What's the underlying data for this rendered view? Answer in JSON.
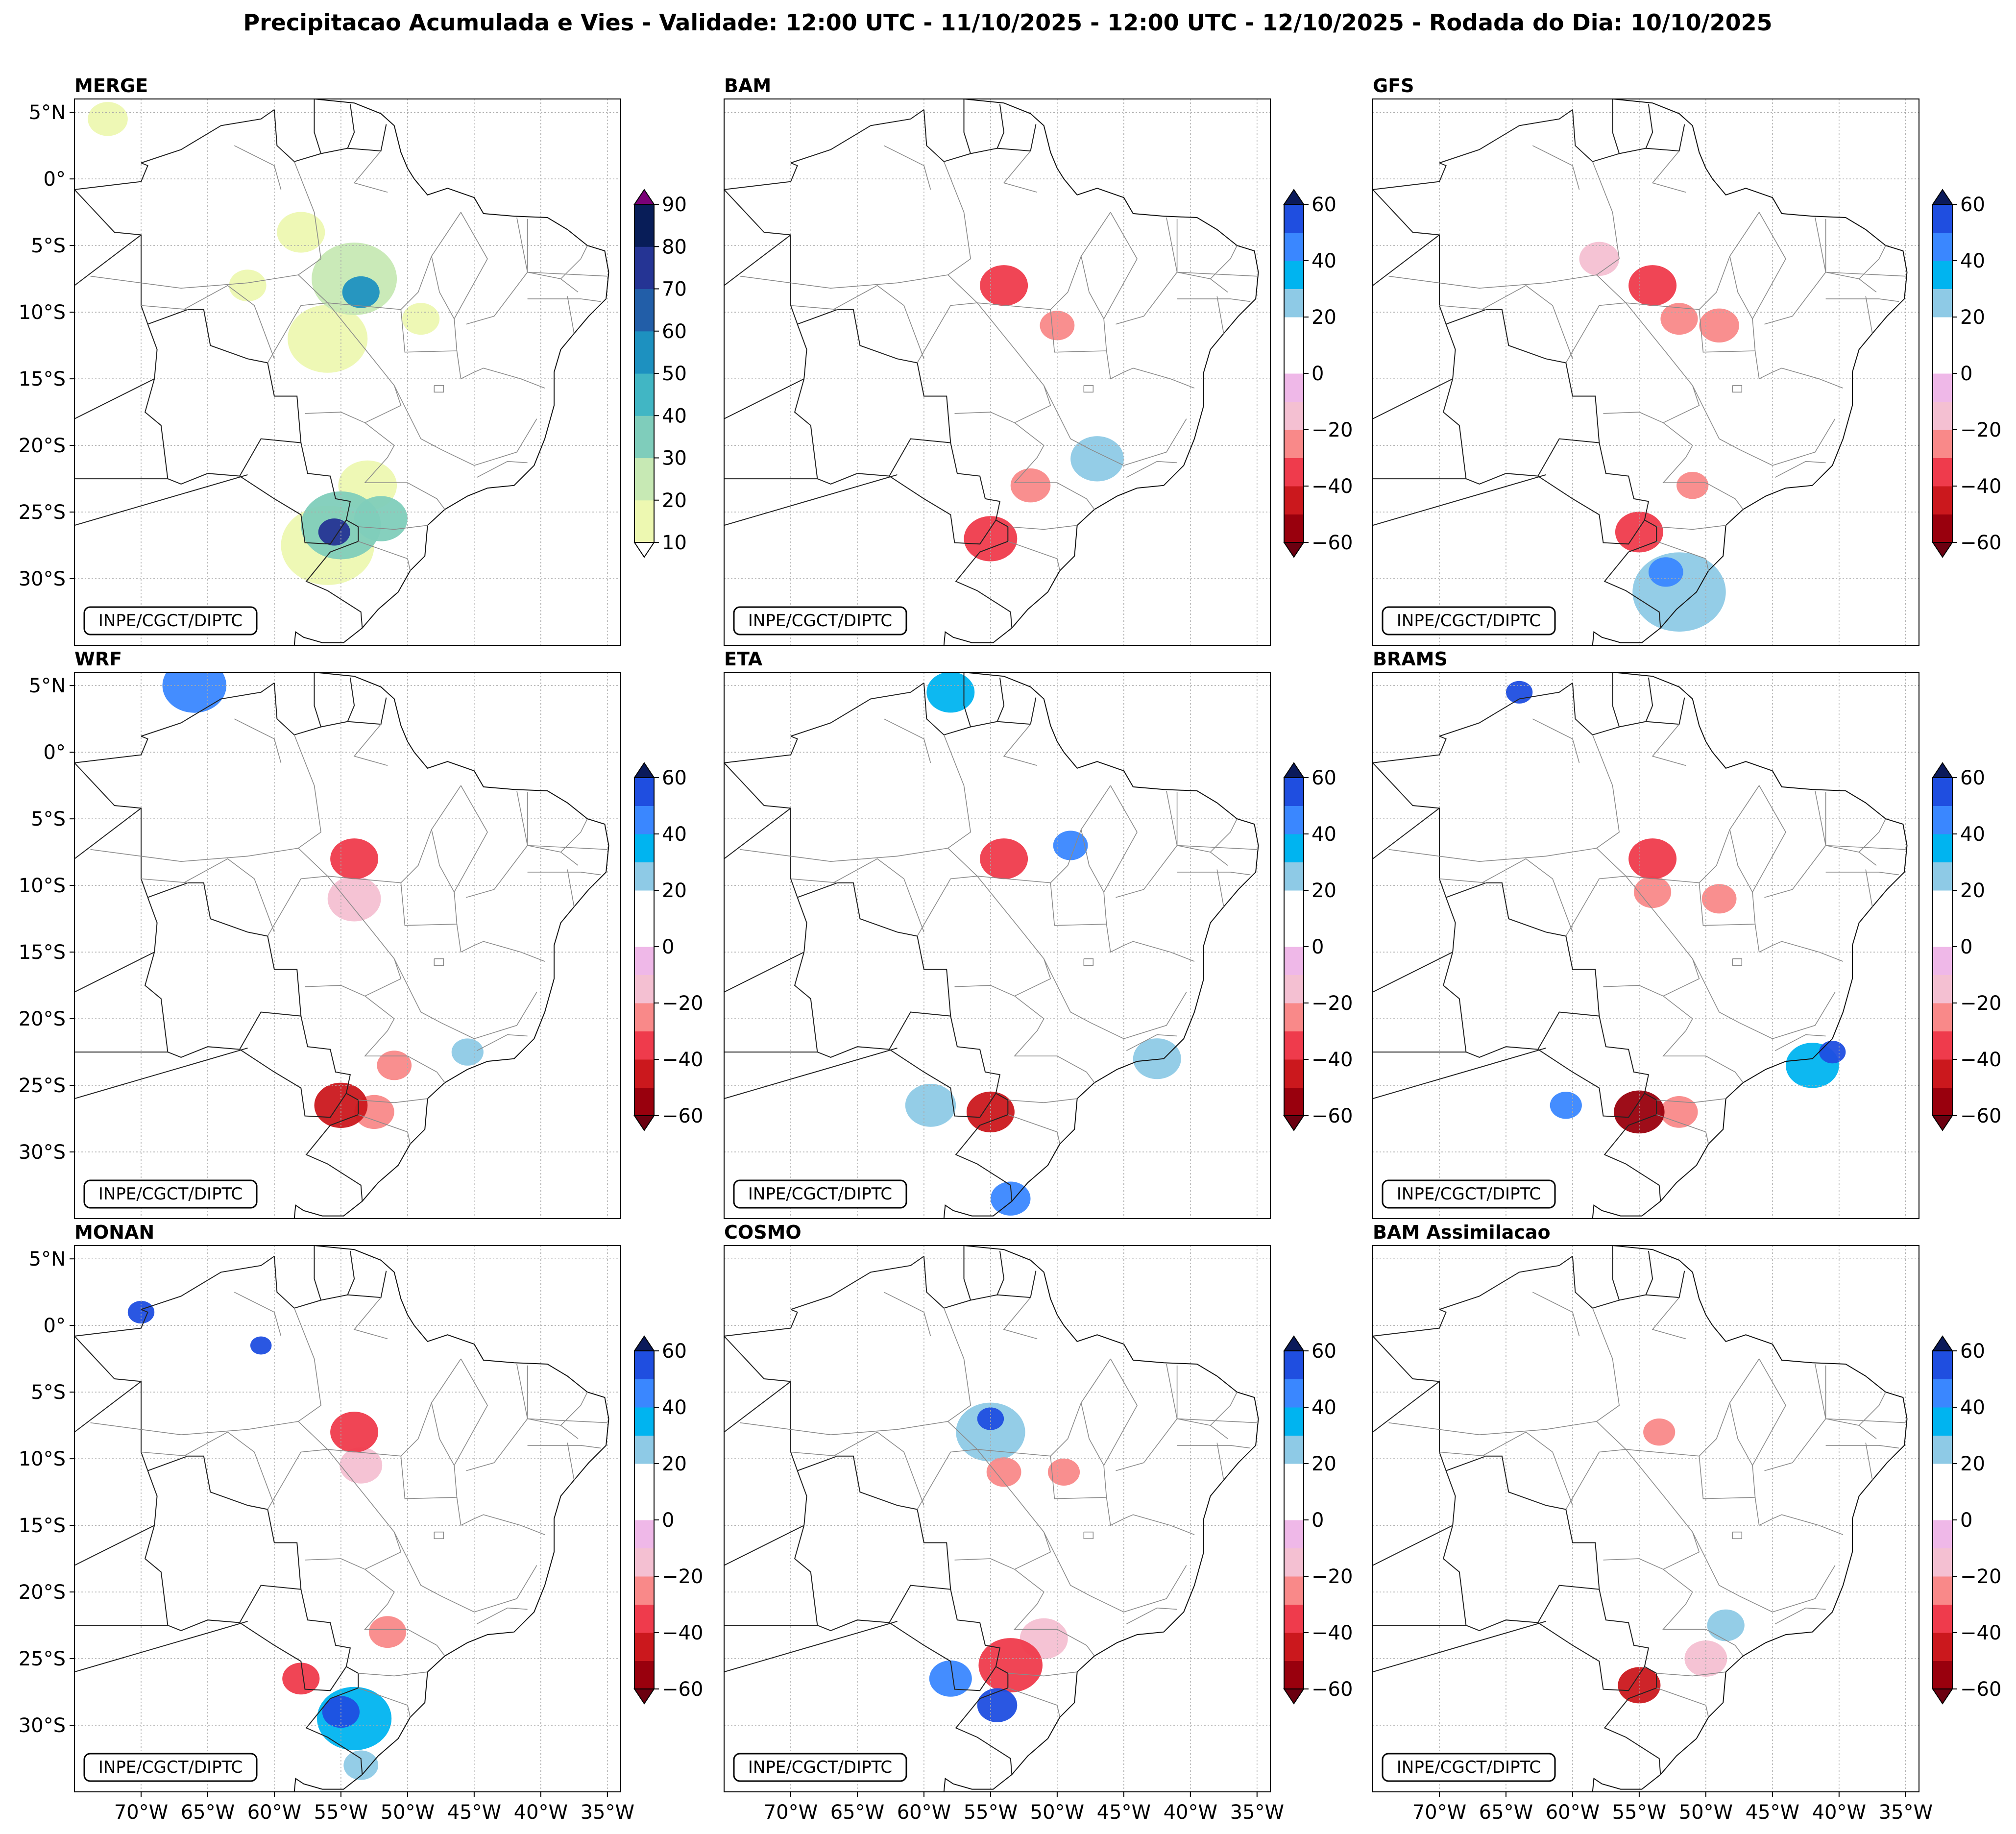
{
  "figure_title": "Precipitacao Acumulada e Vies - Validade: 12:00 UTC - 11/10/2025 - 12:00 UTC - 12/10/2025 - Rodada do Dia: 10/10/2025",
  "credit": "INPE/CGCT/DIPTC",
  "chart_data": {
    "type": "heatmap",
    "title": "Precipitacao Acumulada e Vies - Validade: 12:00 UTC - 11/10/2025 - 12:00 UTC - 12/10/2025 - Rodada do Dia: 10/10/2025",
    "map_extent": {
      "lon": [
        -75,
        -34
      ],
      "lat": [
        -35,
        6
      ]
    },
    "grid": true,
    "lat_tick_labels": [
      "5°N",
      "0°",
      "5°S",
      "10°S",
      "15°S",
      "20°S",
      "25°S",
      "30°S"
    ],
    "lat_ticks": [
      5,
      0,
      -5,
      -10,
      -15,
      -20,
      -25,
      -30
    ],
    "lon_tick_labels": [
      "70°W",
      "65°W",
      "60°W",
      "55°W",
      "50°W",
      "45°W",
      "40°W",
      "35°W"
    ],
    "lon_ticks": [
      -70,
      -65,
      -60,
      -55,
      -50,
      -45,
      -40,
      -35
    ],
    "precip_colorbar": {
      "levels": [
        10,
        20,
        30,
        40,
        50,
        60,
        70,
        80,
        90
      ],
      "tick_labels": [
        "10",
        "20",
        "30",
        "40",
        "50",
        "60",
        "70",
        "80",
        "90"
      ],
      "colors": [
        "#edf8b1",
        "#c7e9b4",
        "#7fcdbb",
        "#41b6c4",
        "#1d91c0",
        "#225ea8",
        "#253494",
        "#081d58"
      ],
      "extend_low": "#ffffff",
      "extend_high": "#7a0177"
    },
    "bias_colorbar": {
      "levels": [
        -60,
        -50,
        -40,
        -30,
        -20,
        -10,
        0,
        10,
        20,
        30,
        40,
        50,
        60
      ],
      "tick_labels": [
        "-60",
        "-40",
        "-20",
        "0",
        "20",
        "40",
        "60"
      ],
      "tick_values": [
        -60,
        -40,
        -20,
        0,
        20,
        40,
        60
      ],
      "colors": [
        "#99000d",
        "#cb181d",
        "#ef3b4c",
        "#f98989",
        "#f4c0d2",
        "#efb8e8",
        "#ffffff",
        "#ffffff",
        "#8ecae6",
        "#00b4f0",
        "#3a87ff",
        "#1f4ee0",
        "#0000ee"
      ],
      "extend_low": "#6b0010",
      "extend_high": "#0b1a5a"
    },
    "panels": [
      {
        "name": "MERGE",
        "kind": "precipitation",
        "blobs": [
          {
            "lon": -54,
            "lat": -7.5,
            "r": 3.2,
            "v": 28
          },
          {
            "lon": -53.5,
            "lat": -8.5,
            "r": 1.4,
            "v": 55
          },
          {
            "lon": -56,
            "lat": -12,
            "r": 3,
            "v": 15
          },
          {
            "lon": -53,
            "lat": -23,
            "r": 2.2,
            "v": 15
          },
          {
            "lon": -55,
            "lat": -26,
            "r": 3,
            "v": 30
          },
          {
            "lon": -55.5,
            "lat": -26.5,
            "r": 1.2,
            "v": 75
          },
          {
            "lon": -56,
            "lat": -27.5,
            "r": 3.5,
            "v": 14
          },
          {
            "lon": -52,
            "lat": -25.5,
            "r": 2,
            "v": 35
          },
          {
            "lon": -58,
            "lat": -4,
            "r": 1.8,
            "v": 14
          },
          {
            "lon": -62,
            "lat": -8,
            "r": 1.4,
            "v": 14
          },
          {
            "lon": -49,
            "lat": -10.5,
            "r": 1.4,
            "v": 16
          },
          {
            "lon": -72.5,
            "lat": 4.5,
            "r": 1.5,
            "v": 12
          }
        ]
      },
      {
        "name": "BAM",
        "kind": "bias",
        "blobs": [
          {
            "lon": -54,
            "lat": -8,
            "r": 1.8,
            "v": -40
          },
          {
            "lon": -60,
            "lat": -10,
            "r": 4,
            "v": 18
          },
          {
            "lon": -52,
            "lat": -5,
            "r": 2,
            "v": 15
          },
          {
            "lon": -67,
            "lat": -8,
            "r": 2,
            "v": 15
          },
          {
            "lon": -47,
            "lat": -21,
            "r": 2,
            "v": 20
          },
          {
            "lon": -55,
            "lat": -27,
            "r": 2,
            "v": -40
          },
          {
            "lon": -52,
            "lat": -23,
            "r": 1.5,
            "v": -25
          },
          {
            "lon": -54.5,
            "lat": -28.5,
            "r": 2.4,
            "v": 18
          },
          {
            "lon": -50,
            "lat": -11,
            "r": 1.3,
            "v": -25
          },
          {
            "lon": -58,
            "lat": 2,
            "r": 2.5,
            "v": 16
          },
          {
            "lon": -55,
            "lat": -19,
            "r": 2.5,
            "v": 15
          },
          {
            "lon": -72,
            "lat": -12,
            "r": 1.5,
            "v": 15
          }
        ]
      },
      {
        "name": "GFS",
        "kind": "bias",
        "blobs": [
          {
            "lon": -54,
            "lat": -8,
            "r": 1.8,
            "v": -35
          },
          {
            "lon": -52,
            "lat": -10.5,
            "r": 1.4,
            "v": -22
          },
          {
            "lon": -55,
            "lat": -26.5,
            "r": 1.8,
            "v": -40
          },
          {
            "lon": -52,
            "lat": -31,
            "r": 3.5,
            "v": 20
          },
          {
            "lon": -53,
            "lat": -29.5,
            "r": 1.3,
            "v": 45
          },
          {
            "lon": -58,
            "lat": -6,
            "r": 1.5,
            "v": -18
          },
          {
            "lon": -49,
            "lat": -11,
            "r": 1.5,
            "v": -25
          },
          {
            "lon": -51,
            "lat": -23,
            "r": 1.2,
            "v": -25
          }
        ]
      },
      {
        "name": "WRF",
        "kind": "bias",
        "blobs": [
          {
            "lon": -54,
            "lat": -8,
            "r": 1.8,
            "v": -40
          },
          {
            "lon": -54,
            "lat": -11,
            "r": 2,
            "v": -18
          },
          {
            "lon": -55,
            "lat": -26.5,
            "r": 2,
            "v": -50
          },
          {
            "lon": -52.5,
            "lat": -27,
            "r": 1.5,
            "v": -30
          },
          {
            "lon": -51,
            "lat": -23.5,
            "r": 1.3,
            "v": -25
          },
          {
            "lon": -64,
            "lat": 0,
            "r": 4,
            "v": 18
          },
          {
            "lon": -66,
            "lat": 5,
            "r": 2.4,
            "v": 45
          },
          {
            "lon": -52,
            "lat": -31,
            "r": 2.2,
            "v": 16
          },
          {
            "lon": -45.5,
            "lat": -22.5,
            "r": 1.2,
            "v": 22
          }
        ]
      },
      {
        "name": "ETA",
        "kind": "bias",
        "blobs": [
          {
            "lon": -54,
            "lat": -8,
            "r": 1.8,
            "v": -40
          },
          {
            "lon": -49,
            "lat": -7,
            "r": 1.3,
            "v": 45
          },
          {
            "lon": -55,
            "lat": -27,
            "r": 1.8,
            "v": -45
          },
          {
            "lon": -59.5,
            "lat": -26.5,
            "r": 1.9,
            "v": 22
          },
          {
            "lon": -42.5,
            "lat": -23,
            "r": 1.8,
            "v": 28
          },
          {
            "lon": -53.5,
            "lat": -33.5,
            "r": 1.5,
            "v": 45
          },
          {
            "lon": -58,
            "lat": 4.5,
            "r": 1.8,
            "v": 35
          },
          {
            "lon": -55,
            "lat": -15,
            "r": 2.2,
            "v": 15
          },
          {
            "lon": -66,
            "lat": -3,
            "r": 2,
            "v": 15
          }
        ]
      },
      {
        "name": "BRAMS",
        "kind": "bias",
        "blobs": [
          {
            "lon": -54,
            "lat": -8,
            "r": 1.8,
            "v": -40
          },
          {
            "lon": -54,
            "lat": -10.5,
            "r": 1.4,
            "v": -22
          },
          {
            "lon": -55,
            "lat": -27,
            "r": 1.9,
            "v": -55
          },
          {
            "lon": -52,
            "lat": -27,
            "r": 1.4,
            "v": -25
          },
          {
            "lon": -60.5,
            "lat": -26.5,
            "r": 1.2,
            "v": 45
          },
          {
            "lon": -42,
            "lat": -23.5,
            "r": 2,
            "v": 30
          },
          {
            "lon": -40.5,
            "lat": -22.5,
            "r": 1,
            "v": 55
          },
          {
            "lon": -64,
            "lat": 4.5,
            "r": 1,
            "v": 55
          },
          {
            "lon": -49,
            "lat": -11,
            "r": 1.3,
            "v": -25
          }
        ]
      },
      {
        "name": "MONAN",
        "kind": "bias",
        "blobs": [
          {
            "lon": -54,
            "lat": -8,
            "r": 1.8,
            "v": -35
          },
          {
            "lon": -53.5,
            "lat": -10.5,
            "r": 1.6,
            "v": -20
          },
          {
            "lon": -54,
            "lat": -29.5,
            "r": 2.8,
            "v": 30
          },
          {
            "lon": -55,
            "lat": -29,
            "r": 1.4,
            "v": 55
          },
          {
            "lon": -58,
            "lat": -26.5,
            "r": 1.4,
            "v": -35
          },
          {
            "lon": -51.5,
            "lat": -23,
            "r": 1.4,
            "v": -25
          },
          {
            "lon": -70,
            "lat": 1,
            "r": 1,
            "v": 55
          },
          {
            "lon": -61,
            "lat": -1.5,
            "r": 0.8,
            "v": 50
          },
          {
            "lon": -53.5,
            "lat": -33,
            "r": 1.3,
            "v": 25
          }
        ]
      },
      {
        "name": "COSMO",
        "kind": "bias",
        "blobs": [
          {
            "lon": -55,
            "lat": -8,
            "r": 2.6,
            "v": 22
          },
          {
            "lon": -55,
            "lat": -7,
            "r": 1,
            "v": 50
          },
          {
            "lon": -54,
            "lat": -11,
            "r": 1.3,
            "v": -25
          },
          {
            "lon": -58,
            "lat": -26.5,
            "r": 1.6,
            "v": 45
          },
          {
            "lon": -54.5,
            "lat": -28.5,
            "r": 1.5,
            "v": 50
          },
          {
            "lon": -53.5,
            "lat": -25.5,
            "r": 2.4,
            "v": -35
          },
          {
            "lon": -51,
            "lat": -23.5,
            "r": 1.8,
            "v": -18
          },
          {
            "lon": -66,
            "lat": -4,
            "r": 2.4,
            "v": 15
          },
          {
            "lon": -49.5,
            "lat": -11,
            "r": 1.2,
            "v": -25
          }
        ]
      },
      {
        "name": "BAM Assimilacao",
        "kind": "bias",
        "blobs": [
          {
            "lon": -58,
            "lat": -10,
            "r": 4.5,
            "v": 16
          },
          {
            "lon": -53,
            "lat": -5,
            "r": 3.5,
            "v": 16
          },
          {
            "lon": -60,
            "lat": 1,
            "r": 3.5,
            "v": 16
          },
          {
            "lon": -70,
            "lat": -3,
            "r": 3,
            "v": 16
          },
          {
            "lon": -48,
            "lat": -20,
            "r": 4,
            "v": 16
          },
          {
            "lon": -44,
            "lat": -22,
            "r": 3,
            "v": 18
          },
          {
            "lon": -55,
            "lat": -18,
            "r": 2.8,
            "v": 16
          },
          {
            "lon": -72,
            "lat": 4.5,
            "r": 2.2,
            "v": 16
          },
          {
            "lon": -55,
            "lat": -27,
            "r": 1.6,
            "v": -45
          },
          {
            "lon": -53.5,
            "lat": -8,
            "r": 1.2,
            "v": -25
          },
          {
            "lon": -50,
            "lat": -25,
            "r": 1.6,
            "v": -18
          },
          {
            "lon": -48.5,
            "lat": -22.5,
            "r": 1.4,
            "v": 22
          }
        ]
      }
    ]
  }
}
